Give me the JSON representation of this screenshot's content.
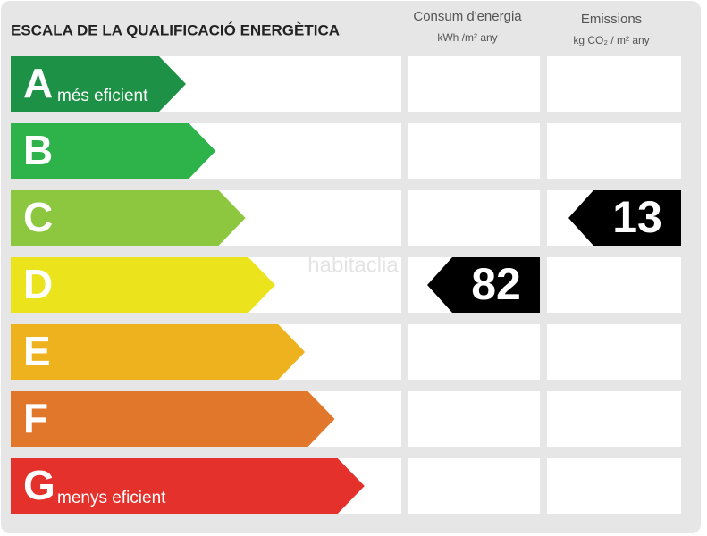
{
  "title": "ESCALA DE LA QUALIFICACIÓ ENERGÈTICA",
  "columns": [
    {
      "title": "Consum d'energia",
      "unit": "kWh /m² any"
    },
    {
      "title": "Emissions",
      "unit": "kg CO₂ / m² any"
    }
  ],
  "ratings": [
    {
      "letter": "A",
      "label": "més eficient",
      "color": "#1d9247"
    },
    {
      "letter": "B",
      "color": "#2db34a"
    },
    {
      "letter": "C",
      "color": "#8dc63f"
    },
    {
      "letter": "D",
      "color": "#ebe41d"
    },
    {
      "letter": "E",
      "color": "#efb21f"
    },
    {
      "letter": "F",
      "color": "#e1772a"
    },
    {
      "letter": "G",
      "label": "menys eficient",
      "color": "#e4312b"
    }
  ],
  "energy": {
    "rating": "D",
    "value": 82
  },
  "emissions": {
    "rating": "C",
    "value": 13
  },
  "watermark": "habitaclia"
}
